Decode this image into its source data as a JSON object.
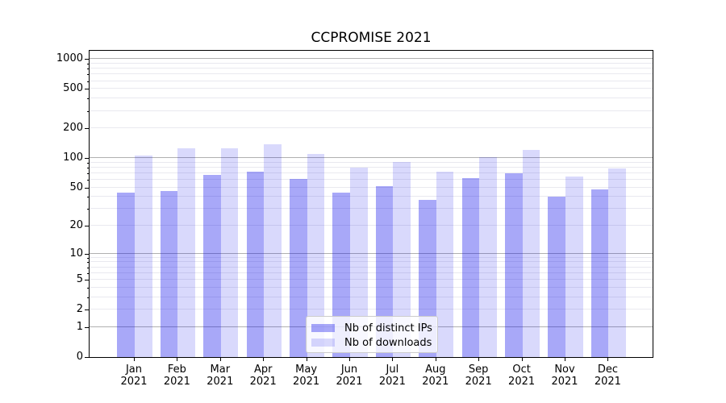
{
  "title": "CCPROMISE 2021",
  "colors": {
    "bar_distinct_ips_hex": "#a8a8f8",
    "bar_downloads_hex": "#d9d9fc",
    "bar_base_hex": "#0000eb",
    "bar_alpha_distinct_ips": 0.34,
    "bar_alpha_downloads": 0.15,
    "grid_major": "#b0b0b0",
    "grid_minor": "#e9e9ef",
    "axis": "#000000",
    "legend_border": "#cccccc"
  },
  "legend": {
    "items": [
      {
        "label": "Nb of distinct IPs"
      },
      {
        "label": "Nb of downloads"
      }
    ]
  },
  "chart_data": {
    "type": "bar",
    "title": "CCPROMISE 2021",
    "categories": [
      "Jan",
      "Feb",
      "Mar",
      "Apr",
      "May",
      "Jun",
      "Jul",
      "Aug",
      "Sep",
      "Oct",
      "Nov",
      "Dec"
    ],
    "year": "2021",
    "series": [
      {
        "name": "Nb of distinct IPs",
        "values": [
          44,
          46,
          67,
          72,
          61,
          44,
          52,
          37,
          62,
          70,
          40,
          48
        ]
      },
      {
        "name": "Nb of downloads",
        "values": [
          106,
          125,
          125,
          137,
          110,
          80,
          91,
          72,
          103,
          120,
          65,
          79
        ]
      }
    ],
    "xlabel": "",
    "ylabel": "",
    "yscale": "symlog",
    "y_ticks": [
      0,
      1,
      2,
      5,
      10,
      20,
      50,
      100,
      200,
      500,
      1000
    ],
    "y_major_gridlines": [
      1,
      10,
      100,
      1000
    ],
    "y_minor_gridlines": [
      2,
      3,
      4,
      5,
      6,
      7,
      8,
      9,
      20,
      30,
      40,
      50,
      60,
      70,
      80,
      90,
      200,
      300,
      400,
      500,
      600,
      700,
      800,
      900
    ],
    "ylim": [
      0,
      1250
    ],
    "grid": true,
    "legend_position": "lower center"
  }
}
